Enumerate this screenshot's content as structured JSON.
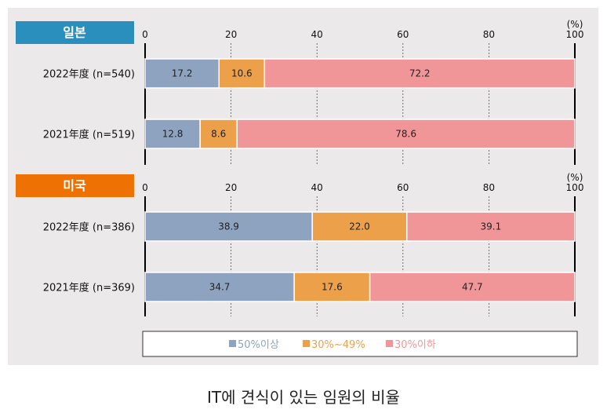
{
  "caption": "IT에 견식이 있는 임원의 비율",
  "colors": {
    "panel_bg": "#ebe9e9",
    "japan_tag": "#2a8fbd",
    "usa_tag": "#ee7203",
    "seg_50_up": "#8da3c0",
    "seg_30_49": "#eca04a",
    "seg_30_down": "#f19698",
    "grid": "#555555",
    "axis": "#000000"
  },
  "chart_data": {
    "type": "bar",
    "orientation": "horizontal-stacked",
    "xlim": [
      0,
      100
    ],
    "ticks": [
      0,
      20,
      40,
      60,
      80,
      100
    ],
    "unit_label": "(%)",
    "legend": {
      "position": "bottom",
      "items": [
        "50%이상",
        "30%~49%",
        "30%이하"
      ]
    },
    "groups": [
      {
        "name": "일본",
        "categories": [
          "2022年度 (n=540)",
          "2021年度 (n=519)"
        ],
        "series": [
          {
            "name": "50%이상",
            "values": [
              17.2,
              12.8
            ]
          },
          {
            "name": "30%~49%",
            "values": [
              10.6,
              8.6
            ]
          },
          {
            "name": "30%이하",
            "values": [
              72.2,
              78.6
            ]
          }
        ]
      },
      {
        "name": "미국",
        "categories": [
          "2022年度 (n=386)",
          "2021年度 (n=369)"
        ],
        "series": [
          {
            "name": "50%이상",
            "values": [
              38.9,
              34.7
            ]
          },
          {
            "name": "30%~49%",
            "values": [
              22.0,
              17.6
            ]
          },
          {
            "name": "30%이하",
            "values": [
              39.1,
              47.7
            ]
          }
        ]
      }
    ]
  }
}
